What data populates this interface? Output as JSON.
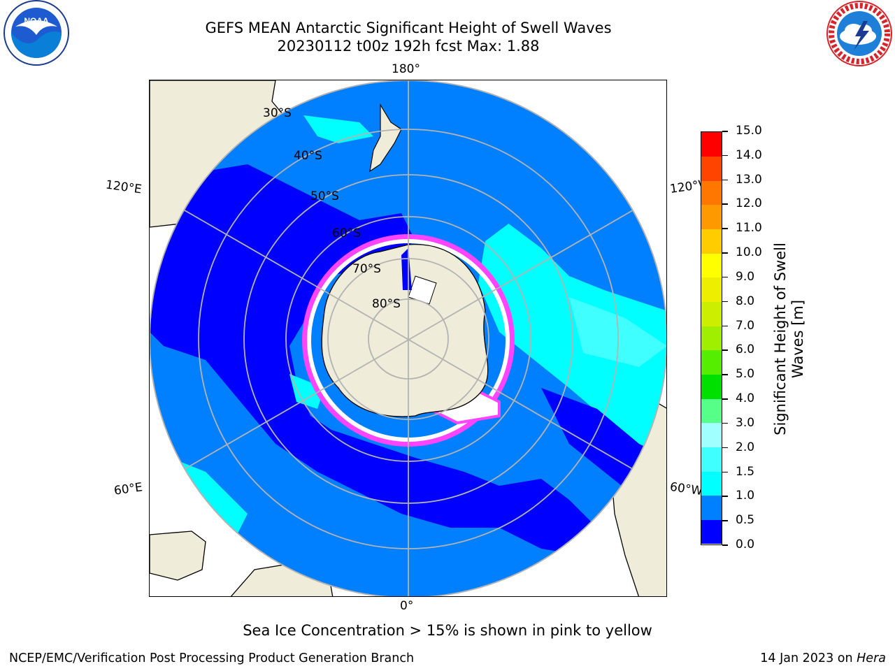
{
  "header": {
    "title_line1": "GEFS MEAN Antarctic Significant Height of Swell Waves",
    "title_line2": "20230112 t00z 192h fcst   Max: 1.88"
  },
  "logos": {
    "noaa": "NOAA",
    "noaa_ring_text": "NATIONAL OCEANIC AND ATMOSPHERIC ADMINISTRATION · U.S. DEPARTMENT OF COMMERCE",
    "nws_ring_text": "NATIONAL WEATHER SERVICE"
  },
  "map": {
    "projection": "south polar stereographic",
    "lon_labels": {
      "top": "180°",
      "bottom": "0°",
      "upper_left": "120°E",
      "upper_right": "120°W",
      "lower_left": "60°E",
      "lower_right": "60°W"
    },
    "lat_labels": [
      "30°S",
      "40°S",
      "50°S",
      "60°S",
      "70°S",
      "80°S"
    ],
    "colors": {
      "land": "#efedda",
      "ocean_0_05": "#0000ff",
      "ocean_05_10": "#0080ff",
      "ocean_10_15": "#00ffff",
      "ocean_15_20": "#3dffff",
      "ice_edge": "#ff44ff",
      "gridline": "#b3b3b3"
    }
  },
  "colorbar": {
    "label": "Significant Height of Swell Waves [m]",
    "label_line1": "Significant Height of Swell",
    "label_line2": "Waves [m]",
    "ticks": [
      "0.0",
      "0.5",
      "1.0",
      "1.5",
      "2.0",
      "3.0",
      "4.0",
      "5.0",
      "6.0",
      "7.0",
      "8.0",
      "9.0",
      "10.0",
      "11.0",
      "12.0",
      "13.0",
      "14.0",
      "15.0"
    ],
    "colors": [
      "#0000ff",
      "#0080ff",
      "#00ffff",
      "#40ffff",
      "#a0ffff",
      "#55ff88",
      "#00e000",
      "#55ee00",
      "#a0ee00",
      "#ccee00",
      "#eeee00",
      "#ffff00",
      "#ffcc00",
      "#ff9900",
      "#ff7700",
      "#ff4400",
      "#ff0000"
    ]
  },
  "note": "Sea Ice Concentration > 15% is shown in pink to yellow",
  "footer": {
    "left": "NCEP/EMC/Verification Post Processing Product Generation Branch",
    "right_date": "14 Jan 2023 on ",
    "right_host": "Hera"
  }
}
